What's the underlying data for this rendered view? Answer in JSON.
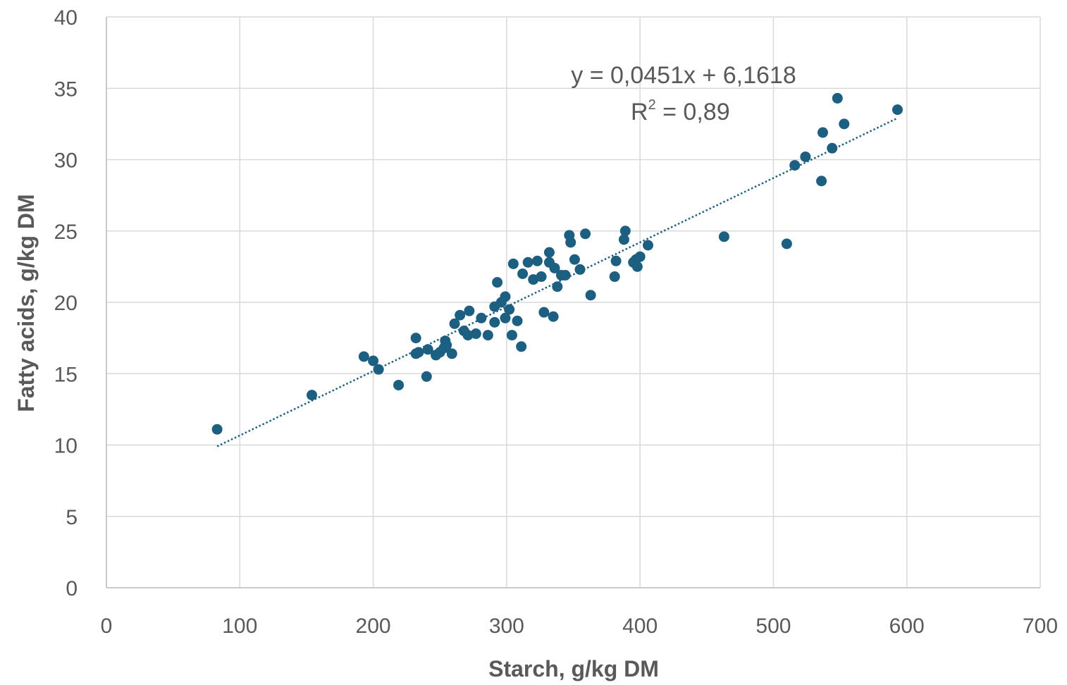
{
  "chart_data": {
    "type": "scatter",
    "xlabel": "Starch, g/kg DM",
    "ylabel": "Fatty acids, g/kg DM",
    "xlim": [
      0,
      700
    ],
    "ylim": [
      0,
      40
    ],
    "xticks": [
      0,
      100,
      200,
      300,
      400,
      500,
      600,
      700
    ],
    "yticks": [
      0,
      5,
      10,
      15,
      20,
      25,
      30,
      35,
      40
    ],
    "grid": true,
    "marker_color": "#1d5f80",
    "trendline": {
      "type": "linear",
      "slope": 0.0451,
      "intercept": 6.1618,
      "x_range": [
        83,
        593
      ],
      "style": "dotted",
      "color": "#1d5f80",
      "equation_label": "y = 0,0451x + 6,1618",
      "r2_prefix": "R",
      "r2_superscript": "2",
      "r2_value": " = 0,89"
    },
    "points": [
      [
        83,
        11.1
      ],
      [
        154,
        13.5
      ],
      [
        193,
        16.2
      ],
      [
        200,
        15.9
      ],
      [
        204,
        15.3
      ],
      [
        219,
        14.2
      ],
      [
        232,
        17.5
      ],
      [
        232,
        16.4
      ],
      [
        234,
        16.5
      ],
      [
        240,
        14.8
      ],
      [
        241,
        16.7
      ],
      [
        247,
        16.3
      ],
      [
        250,
        16.5
      ],
      [
        253,
        16.8
      ],
      [
        254,
        17.3
      ],
      [
        255,
        17.0
      ],
      [
        259,
        16.4
      ],
      [
        261,
        18.5
      ],
      [
        265,
        19.1
      ],
      [
        268,
        18.0
      ],
      [
        271,
        17.7
      ],
      [
        272,
        19.4
      ],
      [
        277,
        17.8
      ],
      [
        281,
        18.9
      ],
      [
        286,
        17.7
      ],
      [
        291,
        18.6
      ],
      [
        291,
        19.7
      ],
      [
        293,
        21.4
      ],
      [
        296,
        20.0
      ],
      [
        299,
        18.9
      ],
      [
        299,
        20.4
      ],
      [
        302,
        19.5
      ],
      [
        304,
        17.7
      ],
      [
        305,
        22.7
      ],
      [
        308,
        18.7
      ],
      [
        311,
        16.9
      ],
      [
        312,
        22.0
      ],
      [
        316,
        22.8
      ],
      [
        320,
        21.6
      ],
      [
        323,
        22.9
      ],
      [
        326,
        21.8
      ],
      [
        328,
        19.3
      ],
      [
        332,
        23.5
      ],
      [
        332,
        22.8
      ],
      [
        335,
        19.0
      ],
      [
        336,
        22.4
      ],
      [
        338,
        21.1
      ],
      [
        341,
        21.9
      ],
      [
        344,
        21.9
      ],
      [
        347,
        24.7
      ],
      [
        348,
        24.2
      ],
      [
        351,
        23.0
      ],
      [
        355,
        22.3
      ],
      [
        359,
        24.8
      ],
      [
        363,
        20.5
      ],
      [
        381,
        21.8
      ],
      [
        382,
        22.9
      ],
      [
        388,
        24.4
      ],
      [
        389,
        25.0
      ],
      [
        395,
        22.8
      ],
      [
        397,
        23.0
      ],
      [
        398,
        22.5
      ],
      [
        400,
        23.2
      ],
      [
        406,
        24.0
      ],
      [
        463,
        24.6
      ],
      [
        510,
        24.1
      ],
      [
        516,
        29.6
      ],
      [
        524,
        30.2
      ],
      [
        536,
        28.5
      ],
      [
        537,
        31.9
      ],
      [
        544,
        30.8
      ],
      [
        548,
        34.3
      ],
      [
        553,
        32.5
      ],
      [
        593,
        33.5
      ]
    ]
  }
}
